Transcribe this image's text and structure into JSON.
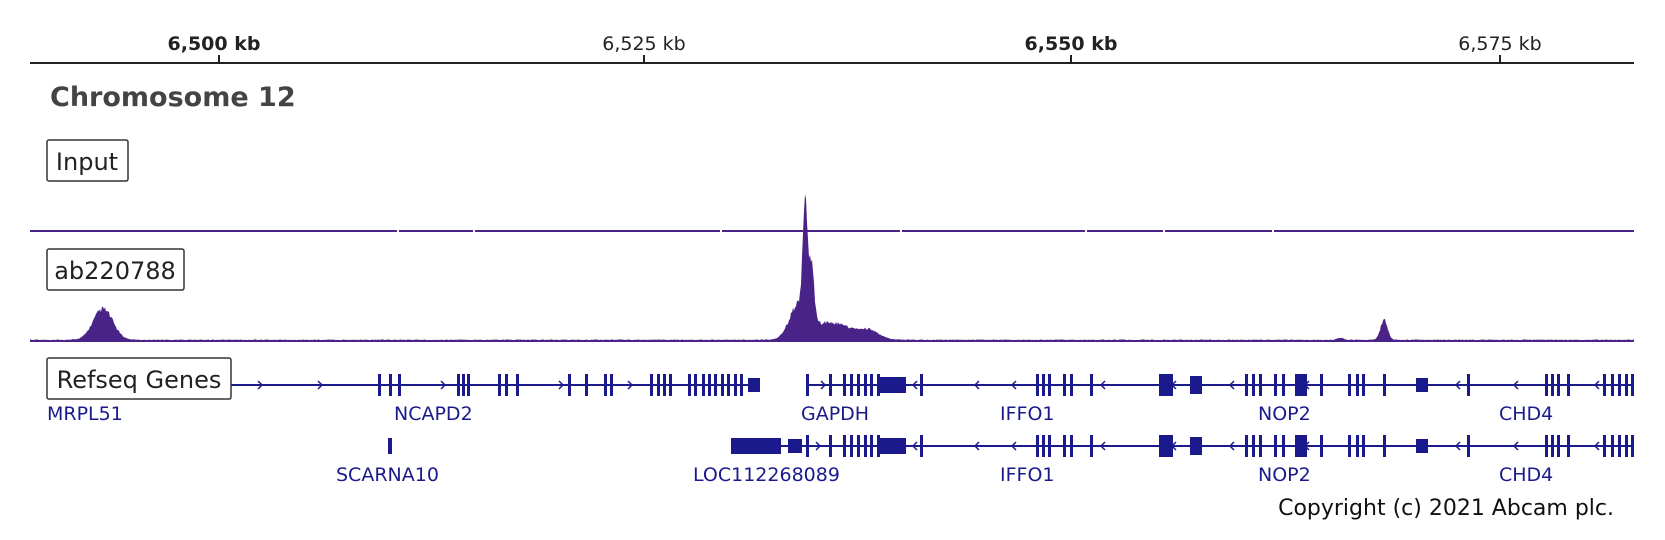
{
  "ruler": {
    "ticks": [
      {
        "label": "6,500 kb",
        "bold": true
      },
      {
        "label": "6,525 kb",
        "bold": false
      },
      {
        "label": "6,550 kb",
        "bold": true
      },
      {
        "label": "6,575 kb",
        "bold": false
      }
    ]
  },
  "chromosome": "Chromosome 12",
  "tracks": {
    "input_label": "Input",
    "chip_label": "ab220788",
    "genes_label": "Refseq Genes"
  },
  "genes": {
    "row1": [
      "MRPL51",
      "NCAPD2",
      "GAPDH",
      "IFFO1",
      "NOP2",
      "CHD4"
    ],
    "row2": [
      "SCARNA10",
      "LOC112268089",
      "IFFO1",
      "NOP2",
      "CHD4"
    ]
  },
  "copyright": "Copyright (c) 2021 Abcam plc.",
  "colors": {
    "signal": "#4a2388",
    "gene": "#1a1a8c",
    "axis": "#222222"
  }
}
